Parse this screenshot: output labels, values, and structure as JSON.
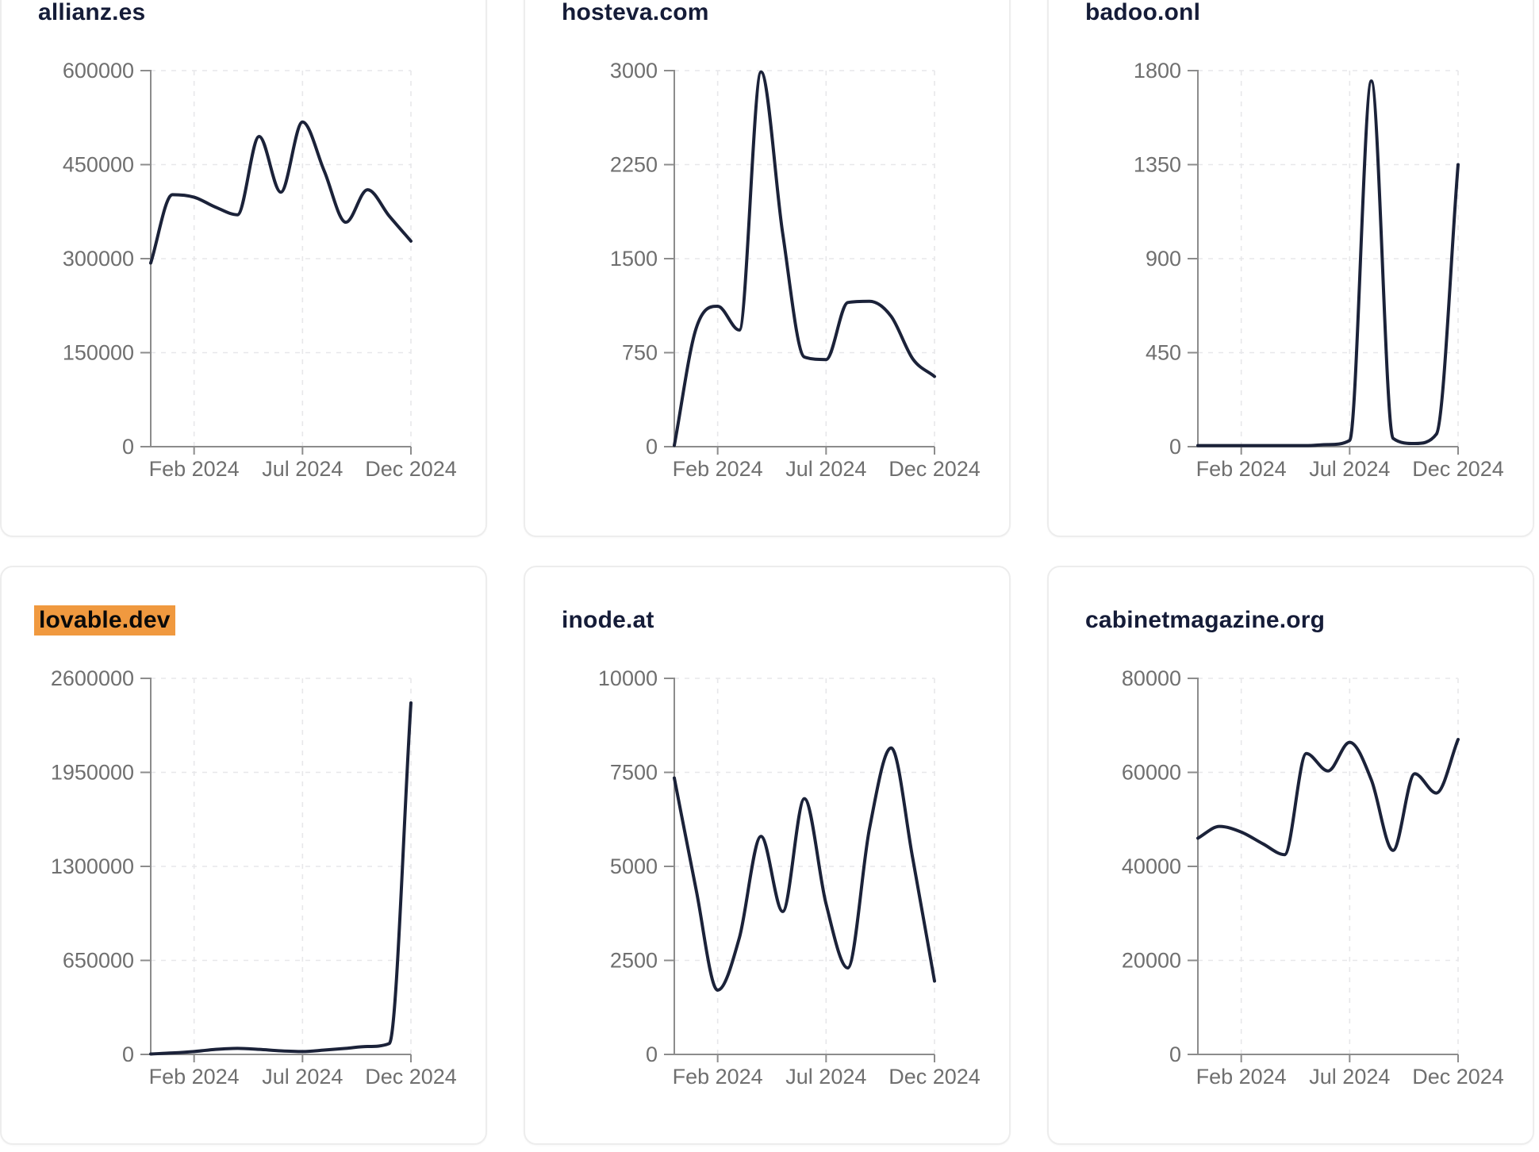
{
  "page": {
    "background": "#ffffff",
    "line_color": "#1b2239",
    "title_color": "#151c38",
    "tick_label_color": "#6f6f6f",
    "highlight_color": "#f0993f",
    "highlighted_domain": "lovable.dev"
  },
  "chart_data": [
    {
      "type": "line",
      "title": "allianz.es",
      "highlighted": false,
      "x": [
        "Dec 2023",
        "Jan 2024",
        "Feb 2024",
        "Mar 2024",
        "Apr 2024",
        "May 2024",
        "Jun 2024",
        "Jul 2024",
        "Aug 2024",
        "Sep 2024",
        "Oct 2024",
        "Nov 2024",
        "Dec 2024"
      ],
      "values": [
        293000,
        402000,
        398000,
        382000,
        370000,
        495000,
        406000,
        518000,
        440000,
        358000,
        410000,
        368000,
        328000
      ],
      "ylim": [
        0,
        600000
      ],
      "y_ticks": [
        0,
        150000,
        300000,
        450000,
        600000
      ],
      "y_tick_labels": [
        "0",
        "150000",
        "300000",
        "450000",
        "600000"
      ],
      "x_tick_labels": [
        "Feb 2024",
        "Jul 2024",
        "Dec 2024"
      ],
      "grid": true,
      "legend": false
    },
    {
      "type": "line",
      "title": "hosteva.com",
      "highlighted": false,
      "x": [
        "Dec 2023",
        "Jan 2024",
        "Feb 2024",
        "Mar 2024",
        "Apr 2024",
        "May 2024",
        "Jun 2024",
        "Jul 2024",
        "Aug 2024",
        "Sep 2024",
        "Oct 2024",
        "Nov 2024",
        "Dec 2024"
      ],
      "values": [
        10,
        940,
        1120,
        930,
        2990,
        1700,
        715,
        695,
        1150,
        1160,
        1040,
        700,
        560
      ],
      "ylim": [
        0,
        3000
      ],
      "y_ticks": [
        0,
        750,
        1500,
        2250,
        3000
      ],
      "y_tick_labels": [
        "0",
        "750",
        "1500",
        "2250",
        "3000"
      ],
      "x_tick_labels": [
        "Feb 2024",
        "Jul 2024",
        "Dec 2024"
      ],
      "grid": true,
      "legend": false
    },
    {
      "type": "line",
      "title": "badoo.onl",
      "highlighted": false,
      "x": [
        "Dec 2023",
        "Jan 2024",
        "Feb 2024",
        "Mar 2024",
        "Apr 2024",
        "May 2024",
        "Jun 2024",
        "Jul 2024",
        "Aug 2024",
        "Sep 2024",
        "Oct 2024",
        "Nov 2024",
        "Dec 2024"
      ],
      "values": [
        5,
        5,
        5,
        5,
        5,
        5,
        10,
        30,
        1750,
        40,
        15,
        60,
        1350
      ],
      "ylim": [
        0,
        1800
      ],
      "y_ticks": [
        0,
        450,
        900,
        1350,
        1800
      ],
      "y_tick_labels": [
        "0",
        "450",
        "900",
        "1350",
        "1800"
      ],
      "x_tick_labels": [
        "Feb 2024",
        "Jul 2024",
        "Dec 2024"
      ],
      "grid": true,
      "legend": false
    },
    {
      "type": "line",
      "title": "lovable.dev",
      "highlighted": true,
      "x": [
        "Dec 2023",
        "Jan 2024",
        "Feb 2024",
        "Mar 2024",
        "Apr 2024",
        "May 2024",
        "Jun 2024",
        "Jul 2024",
        "Aug 2024",
        "Sep 2024",
        "Oct 2024",
        "Nov 2024",
        "Dec 2024"
      ],
      "values": [
        3000,
        10000,
        20000,
        35000,
        42000,
        35000,
        25000,
        20000,
        30000,
        42000,
        55000,
        75000,
        2430000
      ],
      "ylim": [
        0,
        2600000
      ],
      "y_ticks": [
        0,
        650000,
        1300000,
        1950000,
        2600000
      ],
      "y_tick_labels": [
        "0",
        "650000",
        "1300000",
        "1950000",
        "2600000"
      ],
      "x_tick_labels": [
        "Feb 2024",
        "Jul 2024",
        "Dec 2024"
      ],
      "grid": true,
      "legend": false
    },
    {
      "type": "line",
      "title": "inode.at",
      "highlighted": false,
      "x": [
        "Dec 2023",
        "Jan 2024",
        "Feb 2024",
        "Mar 2024",
        "Apr 2024",
        "May 2024",
        "Jun 2024",
        "Jul 2024",
        "Aug 2024",
        "Sep 2024",
        "Oct 2024",
        "Nov 2024",
        "Dec 2024"
      ],
      "values": [
        7350,
        4400,
        1710,
        3100,
        5800,
        3800,
        6800,
        4000,
        2300,
        6000,
        8150,
        5200,
        1950
      ],
      "ylim": [
        0,
        10000
      ],
      "y_ticks": [
        0,
        2500,
        5000,
        7500,
        10000
      ],
      "y_tick_labels": [
        "0",
        "2500",
        "5000",
        "7500",
        "10000"
      ],
      "x_tick_labels": [
        "Feb 2024",
        "Jul 2024",
        "Dec 2024"
      ],
      "grid": true,
      "legend": false
    },
    {
      "type": "line",
      "title": "cabinetmagazine.org",
      "highlighted": false,
      "x": [
        "Dec 2023",
        "Jan 2024",
        "Feb 2024",
        "Mar 2024",
        "Apr 2024",
        "May 2024",
        "Jun 2024",
        "Jul 2024",
        "Aug 2024",
        "Sep 2024",
        "Oct 2024",
        "Nov 2024",
        "Dec 2024"
      ],
      "values": [
        46000,
        48500,
        47300,
        44800,
        42500,
        64000,
        60300,
        66400,
        58400,
        43400,
        59700,
        55600,
        67000
      ],
      "ylim": [
        0,
        80000
      ],
      "y_ticks": [
        0,
        20000,
        40000,
        60000,
        80000
      ],
      "y_tick_labels": [
        "0",
        "20000",
        "40000",
        "60000",
        "80000"
      ],
      "x_tick_labels": [
        "Feb 2024",
        "Jul 2024",
        "Dec 2024"
      ],
      "grid": true,
      "legend": false
    }
  ]
}
